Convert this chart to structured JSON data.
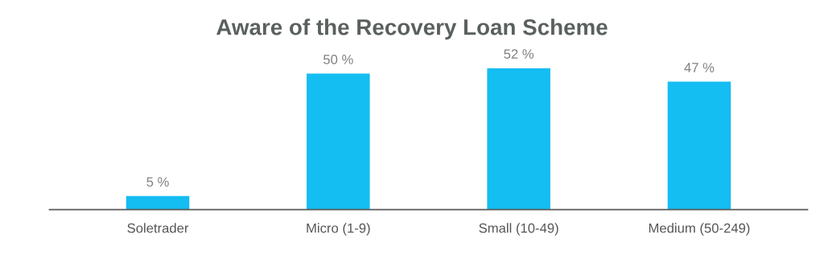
{
  "chart_data": {
    "type": "bar",
    "title": "Aware of the Recovery Loan Scheme",
    "categories": [
      "Soletrader",
      "Micro (1-9)",
      "Small (10-49)",
      "Medium (50-249)"
    ],
    "values": [
      5,
      50,
      52,
      47
    ],
    "value_labels": [
      "5 %",
      "50 %",
      "52 %",
      "47 %"
    ],
    "color": "#14bdf2",
    "grid": false,
    "legend": false
  }
}
